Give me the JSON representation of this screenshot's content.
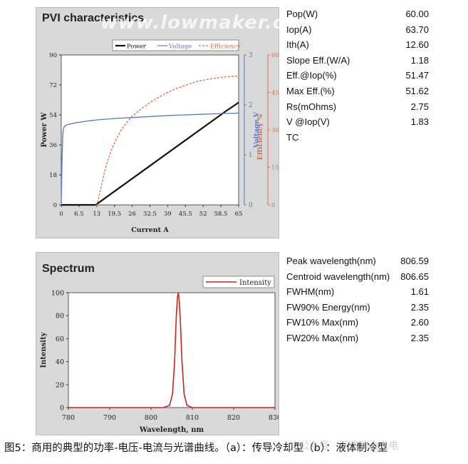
{
  "pvi": {
    "title": "PVI characteristics",
    "watermark": "www.lowmaker.com",
    "legend": [
      "Power",
      "Voltage",
      "Efficiency"
    ],
    "stats": [
      {
        "label": "Pop(W)",
        "value": "60.00"
      },
      {
        "label": "Iop(A)",
        "value": "63.70"
      },
      {
        "label": "Ith(A)",
        "value": "12.60"
      },
      {
        "label": "Slope Eff.(W/A)",
        "value": "1.18"
      },
      {
        "label": "Eff.@Iop(%)",
        "value": "51.47"
      },
      {
        "label": "Max Eff.(%)",
        "value": "51.62"
      },
      {
        "label": "Rs(mOhms)",
        "value": "2.75"
      },
      {
        "label": "V @Iop(V)",
        "value": "1.83"
      },
      {
        "label": "TC",
        "value": ""
      }
    ]
  },
  "spectrum": {
    "title": "Spectrum",
    "legend": [
      "Intensity"
    ],
    "stats": [
      {
        "label": "Peak wavelength(nm)",
        "value": "806.59"
      },
      {
        "label": "Centroid wavelength(nm)",
        "value": "806.65"
      },
      {
        "label": "FWHM(nm)",
        "value": "1.61"
      },
      {
        "label": "FW90% Energy(nm)",
        "value": "2.35"
      },
      {
        "label": "FW10% Max(nm)",
        "value": "2.60"
      },
      {
        "label": "FW20% Max(nm)",
        "value": "2.35"
      }
    ]
  },
  "caption": "图5：商用的典型的功率-电压-电流与光谱曲线。（a）：传导冷却型（b）：液体制冷型",
  "caption_watermark": "公众号 · 天津瑞合光电",
  "chart_data": [
    {
      "type": "line",
      "title": "PVI characteristics",
      "xlabel": "Current A",
      "ylabel": "Power W",
      "y2label": "Voltage V",
      "y3label": "Efficiency %",
      "xlim": [
        0,
        65
      ],
      "ylim": [
        0,
        90
      ],
      "y2lim": [
        0,
        3
      ],
      "y3lim": [
        0,
        60
      ],
      "xticks": [
        "0",
        "6.5",
        "13",
        "19.5",
        "26",
        "32.5",
        "39",
        "45.5",
        "52",
        "58.5",
        "65"
      ],
      "yticks": [
        "0",
        "18",
        "36",
        "54",
        "72",
        "90"
      ],
      "y2ticks": [
        "0",
        "1",
        "2",
        "3"
      ],
      "y3ticks": [
        "0",
        "15",
        "30",
        "45",
        "60"
      ],
      "legend_position": "top",
      "grid": false,
      "colors": {
        "Power": "#111111",
        "Voltage": "#5a78c0",
        "Efficiency": "#e06a4a"
      },
      "series": [
        {
          "name": "Power",
          "axis": "y",
          "style": "solid",
          "x": [
            0,
            12.6,
            20,
            30,
            40,
            50,
            60,
            63.7,
            65
          ],
          "y": [
            0,
            0,
            8.7,
            20.5,
            32.3,
            44.1,
            55.9,
            60.0,
            61.5
          ]
        },
        {
          "name": "Voltage",
          "axis": "y2",
          "style": "solid",
          "x": [
            0,
            0.3,
            0.6,
            1,
            2,
            5,
            10,
            13,
            20,
            30,
            40,
            50,
            60,
            63.7,
            65
          ],
          "y": [
            0,
            0.9,
            1.45,
            1.56,
            1.6,
            1.64,
            1.68,
            1.7,
            1.73,
            1.76,
            1.79,
            1.81,
            1.83,
            1.83,
            1.84
          ]
        },
        {
          "name": "Efficiency",
          "axis": "y3",
          "style": "dashed",
          "x": [
            12.6,
            13,
            14,
            15,
            16,
            18,
            20,
            22,
            24,
            26,
            30,
            34,
            38,
            42,
            46,
            50,
            55,
            60,
            63.7,
            65
          ],
          "y": [
            0,
            0,
            4,
            9,
            14,
            21,
            26,
            30,
            33,
            35.5,
            39,
            42,
            44.5,
            46.5,
            48,
            49.5,
            50.5,
            51.2,
            51.5,
            51.6
          ]
        }
      ]
    },
    {
      "type": "line",
      "title": "Spectrum",
      "xlabel": "Wavelength, nm",
      "ylabel": "Intensity",
      "xlim": [
        780,
        830
      ],
      "ylim": [
        0,
        100
      ],
      "xticks": [
        "780",
        "790",
        "800",
        "810",
        "820",
        "830"
      ],
      "yticks": [
        "0",
        "20",
        "40",
        "60",
        "80",
        "100"
      ],
      "legend_position": "top-right",
      "grid": false,
      "colors": {
        "Intensity": "#cc2222"
      },
      "series": [
        {
          "name": "Intensity",
          "x": [
            780,
            803,
            804.5,
            805.2,
            805.7,
            806.1,
            806.4,
            806.6,
            806.8,
            807.1,
            807.5,
            808.0,
            808.7,
            810,
            830
          ],
          "y": [
            0,
            0,
            2,
            12,
            40,
            78,
            96,
            100,
            95,
            75,
            40,
            12,
            2,
            0,
            0
          ]
        }
      ]
    }
  ]
}
